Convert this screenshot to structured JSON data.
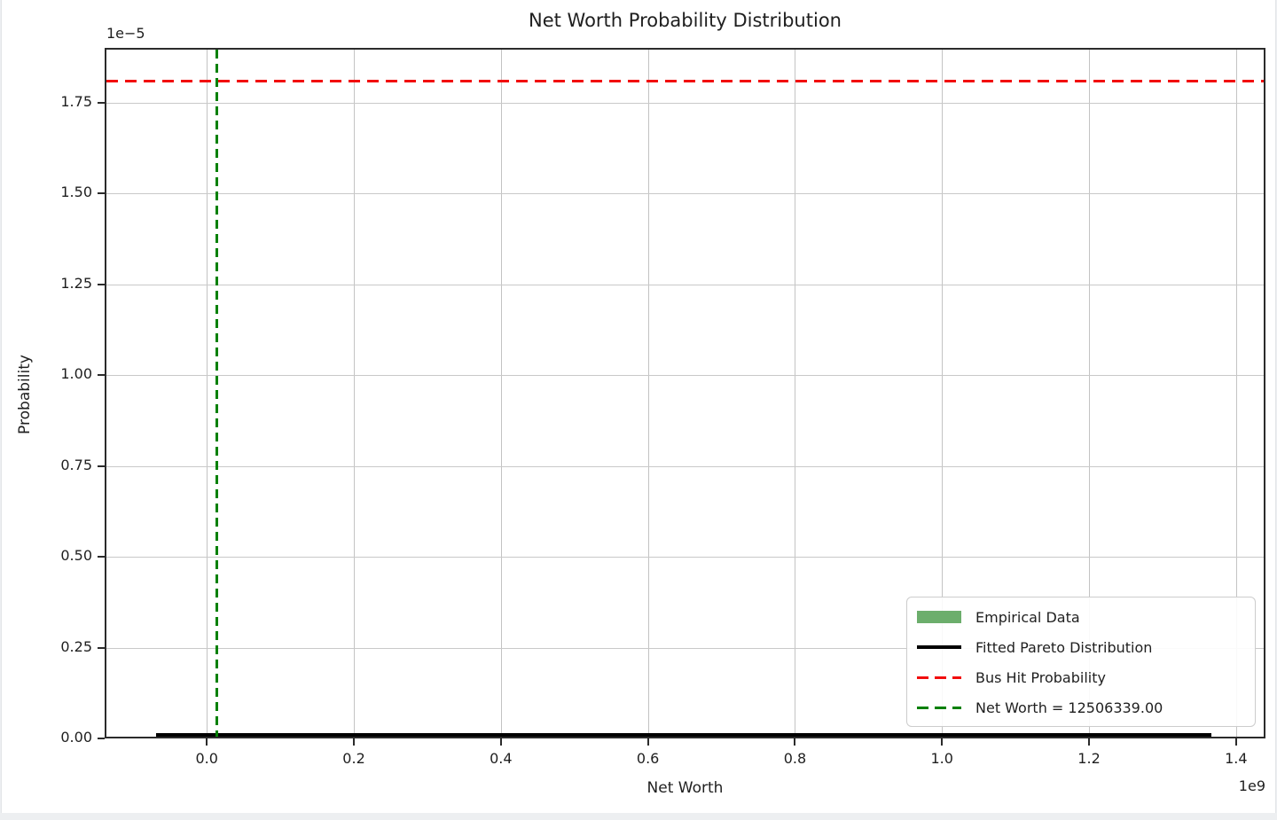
{
  "chart_data": {
    "type": "line",
    "title": "Net Worth Probability Distribution",
    "x_axis": {
      "label": "Net Worth",
      "offset_label": "1e9",
      "unit_scale": 1000000000,
      "lim": [
        -0.139,
        1.44
      ],
      "ticks": [
        {
          "v": 0.0,
          "label": "0.0"
        },
        {
          "v": 0.2,
          "label": "0.2"
        },
        {
          "v": 0.4,
          "label": "0.4"
        },
        {
          "v": 0.6,
          "label": "0.6"
        },
        {
          "v": 0.8,
          "label": "0.8"
        },
        {
          "v": 1.0,
          "label": "1.0"
        },
        {
          "v": 1.2,
          "label": "1.2"
        },
        {
          "v": 1.4,
          "label": "1.4"
        }
      ]
    },
    "y_axis": {
      "label": "Probability",
      "offset_label": "1e−5",
      "unit_scale": 1e-05,
      "lim": [
        0,
        1.9
      ],
      "ticks": [
        {
          "v": 0.0,
          "label": "0.00"
        },
        {
          "v": 0.25,
          "label": "0.25"
        },
        {
          "v": 0.5,
          "label": "0.50"
        },
        {
          "v": 0.75,
          "label": "0.75"
        },
        {
          "v": 1.0,
          "label": "1.00"
        },
        {
          "v": 1.25,
          "label": "1.25"
        },
        {
          "v": 1.5,
          "label": "1.50"
        },
        {
          "v": 1.75,
          "label": "1.75"
        }
      ]
    },
    "grid": true,
    "series": [
      {
        "id": "fitted-pareto",
        "name": "Fitted Pareto Distribution",
        "type": "line",
        "style": "solid",
        "color": "#000000",
        "x_start": -0.069,
        "x_end": 1.366,
        "y": 0.0,
        "note": "probability density hugs zero across entire x range"
      },
      {
        "id": "bus-hit",
        "name": "Bus Hit Probability",
        "type": "hline",
        "style": "dashed",
        "color": "#f20d0d",
        "y": 1.81
      },
      {
        "id": "net-worth",
        "name": "Net Worth = 12506339.00",
        "type": "vline",
        "style": "dashed",
        "color": "#008000",
        "x": 0.0125063
      },
      {
        "id": "empirical",
        "name": "Empirical Data",
        "type": "hist",
        "color": "#6cae6c",
        "note": "bars too small to be visible at this scale"
      }
    ],
    "legend": {
      "position": "lower right",
      "entries": [
        {
          "label": "Empirical Data",
          "swatch": "patch",
          "color": "#6cae6c"
        },
        {
          "label": "Fitted Pareto Distribution",
          "swatch": "line",
          "color": "#000000"
        },
        {
          "label": "Bus Hit Probability",
          "swatch": "dash",
          "color": "#f20d0d"
        },
        {
          "label": "Net Worth = 12506339.00",
          "swatch": "dash",
          "color": "#008000"
        }
      ]
    }
  }
}
